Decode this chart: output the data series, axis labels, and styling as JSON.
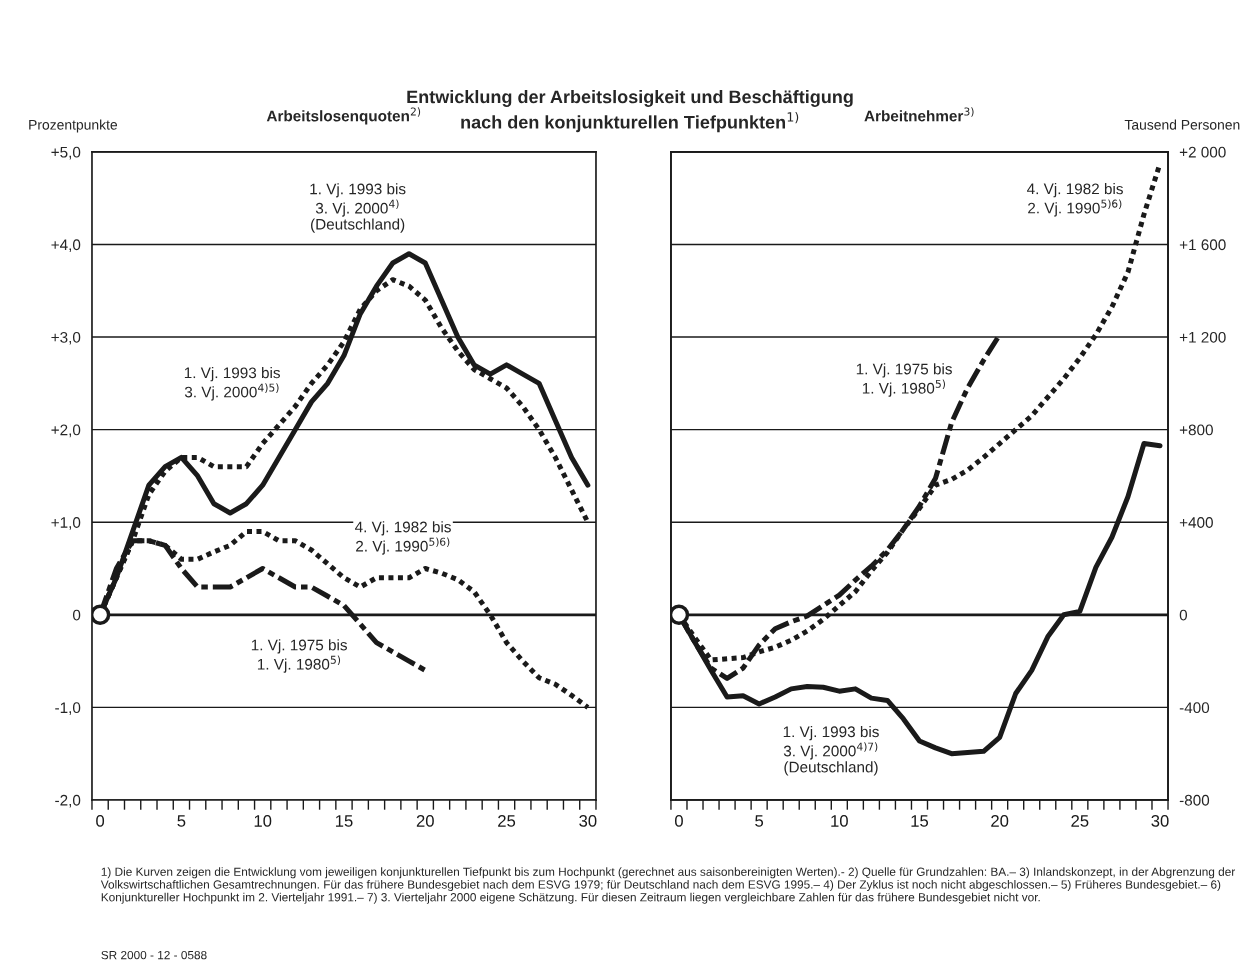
{
  "chart_data": [
    {
      "type": "line",
      "title": "Entwicklung der Arbeitslosigkeit und Beschäftigung\nnach den konjunkturellen Tiefpunkten$^{1)}$",
      "subtitle": "Arbeitslosenquoten$^{2)}$",
      "ylabel": "Prozentpunkte",
      "x": [
        0,
        1,
        2,
        3,
        4,
        5,
        6,
        7,
        8,
        9,
        10,
        11,
        12,
        13,
        14,
        15,
        16,
        17,
        18,
        19,
        20,
        21,
        22,
        23,
        24,
        25,
        26,
        27,
        28,
        29,
        30
      ],
      "xlim": [
        -0.5,
        30.5
      ],
      "xticks": [
        {
          "value": -0.5,
          "label": null
        },
        {
          "value": 0,
          "label": "0"
        },
        {
          "value": 0.5,
          "label": null
        },
        {
          "value": 1.5,
          "label": null
        },
        {
          "value": 2.5,
          "label": null
        },
        {
          "value": 3.5,
          "label": null
        },
        {
          "value": 4.5,
          "label": null
        },
        {
          "value": 5,
          "label": "5"
        },
        {
          "value": 5.5,
          "label": null
        },
        {
          "value": 6.5,
          "label": null
        },
        {
          "value": 7.5,
          "label": null
        },
        {
          "value": 8.5,
          "label": null
        },
        {
          "value": 9.5,
          "label": null
        },
        {
          "value": 10,
          "label": "10"
        },
        {
          "value": 10.5,
          "label": null
        },
        {
          "value": 11.5,
          "label": null
        },
        {
          "value": 12.5,
          "label": null
        },
        {
          "value": 13.5,
          "label": null
        },
        {
          "value": 14.5,
          "label": null
        },
        {
          "value": 15,
          "label": "15"
        },
        {
          "value": 15.5,
          "label": null
        },
        {
          "value": 16.5,
          "label": null
        },
        {
          "value": 17.5,
          "label": null
        },
        {
          "value": 18.5,
          "label": null
        },
        {
          "value": 19.5,
          "label": null
        },
        {
          "value": 20,
          "label": "20"
        },
        {
          "value": 20.5,
          "label": null
        },
        {
          "value": 21.5,
          "label": null
        },
        {
          "value": 22.5,
          "label": null
        },
        {
          "value": 23.5,
          "label": null
        },
        {
          "value": 24.5,
          "label": null
        },
        {
          "value": 25,
          "label": "25"
        },
        {
          "value": 25.5,
          "label": null
        },
        {
          "value": 26.5,
          "label": null
        },
        {
          "value": 27.5,
          "label": null
        },
        {
          "value": 28.5,
          "label": null
        },
        {
          "value": 29.5,
          "label": null
        },
        {
          "value": 30,
          "label": "30"
        },
        {
          "value": 30.5,
          "label": null
        }
      ],
      "ylim": [
        -2,
        5
      ],
      "yticks": [
        {
          "value": -2,
          "label": "-2,0"
        },
        {
          "value": -1,
          "label": "-1,0"
        },
        0,
        {
          "value": 1,
          "label": "+1,0"
        },
        {
          "value": 2,
          "label": "+2,0"
        },
        {
          "value": 3,
          "label": "+3,0"
        },
        {
          "value": 4,
          "label": "+4,0"
        },
        {
          "value": 5,
          "label": "+5,0"
        }
      ],
      "grid": "y",
      "ref_lines": [
        {
          "axis": "y",
          "value": 0,
          "color": "#1a1a1a"
        }
      ],
      "series": [
        {
          "color": "#1a1a1a",
          "line_style": "solid",
          "values": [
            0,
            0.4,
            0.9,
            1.4,
            1.6,
            1.7,
            1.5,
            1.2,
            1.1,
            1.2,
            1.4,
            1.7,
            2.0,
            2.3,
            2.5,
            2.8,
            3.25,
            3.55,
            3.8,
            3.9,
            3.8,
            3.4,
            3.0,
            2.7,
            2.6,
            2.7,
            2.6,
            2.5,
            2.1,
            1.7,
            1.4
          ]
        },
        {
          "color": "#1a1a1a",
          "line_style": "dotted",
          "values": [
            0,
            0.4,
            0.8,
            1.3,
            1.55,
            1.7,
            1.7,
            1.6,
            1.6,
            1.6,
            1.85,
            2.05,
            2.25,
            2.5,
            2.7,
            2.95,
            3.3,
            3.5,
            3.62,
            3.55,
            3.4,
            3.1,
            2.85,
            2.65,
            2.55,
            2.45,
            2.25,
            2.0,
            1.7,
            1.35,
            1.0
          ]
        },
        {
          "color": "#1a1a1a",
          "line_style": "dotted",
          "values": [
            0,
            0.4,
            0.8,
            0.8,
            0.75,
            0.6,
            0.6,
            0.68,
            0.75,
            0.9,
            0.9,
            0.8,
            0.8,
            0.7,
            0.55,
            0.4,
            0.3,
            0.4,
            0.4,
            0.4,
            0.5,
            0.45,
            0.38,
            0.25,
            0.0,
            -0.3,
            -0.5,
            -0.68,
            -0.75,
            -0.87,
            -1.0
          ]
        },
        {
          "color": "#1a1a1a",
          "line_style": "dashed",
          "x": [
            0,
            1,
            2,
            3,
            4,
            5,
            6,
            7,
            8,
            9,
            10,
            11,
            12,
            13,
            14,
            15,
            16,
            17,
            18,
            19,
            20
          ],
          "values": [
            0,
            0.5,
            0.8,
            0.8,
            0.75,
            0.5,
            0.3,
            0.3,
            0.3,
            0.4,
            0.5,
            0.4,
            0.3,
            0.3,
            0.2,
            0.1,
            -0.1,
            -0.3,
            -0.4,
            -0.5,
            -0.6
          ]
        },
        {
          "type": "scatter",
          "marker": "circle",
          "color": "#1a1a1a",
          "x": [
            0
          ],
          "values": [
            0
          ]
        }
      ],
      "annotations": [
        {
          "text": "1. Vj. 1993 bis\n3. Vj. 2000$^{4)}$\n(Deutschland)",
          "x": 19,
          "y": 3.9
        },
        {
          "text": "1. Vj. 1993 bis\n3. Vj. 2000$^{4)5)}$",
          "x": 10,
          "y": 1.85
        },
        {
          "text": "4. Vj. 1982 bis\n2. Vj. 1990$^{5)6)}$",
          "x": 20,
          "y": 0.5
        },
        {
          "text": "1. Vj. 1975 bis\n1. Vj. 1980$^{5)}$",
          "x": 16,
          "y": -0.1
        }
      ]
    },
    {
      "type": "line",
      "subtitle": "Arbeitnehmer$^{3)}$",
      "y2label": "Tausend Personen",
      "x": [
        0,
        1,
        2,
        3,
        4,
        5,
        6,
        7,
        8,
        9,
        10,
        11,
        12,
        13,
        14,
        15,
        16,
        17,
        18,
        19,
        20,
        21,
        22,
        23,
        24,
        25,
        26,
        27,
        28,
        29,
        30
      ],
      "xlim": [
        -0.5,
        30.5
      ],
      "xticks": [
        {
          "value": -0.5,
          "label": null
        },
        {
          "value": 0,
          "label": "0"
        },
        {
          "value": 0.5,
          "label": null
        },
        {
          "value": 1.5,
          "label": null
        },
        {
          "value": 2.5,
          "label": null
        },
        {
          "value": 3.5,
          "label": null
        },
        {
          "value": 4.5,
          "label": null
        },
        {
          "value": 5,
          "label": "5"
        },
        {
          "value": 5.5,
          "label": null
        },
        {
          "value": 6.5,
          "label": null
        },
        {
          "value": 7.5,
          "label": null
        },
        {
          "value": 8.5,
          "label": null
        },
        {
          "value": 9.5,
          "label": null
        },
        {
          "value": 10,
          "label": "10"
        },
        {
          "value": 10.5,
          "label": null
        },
        {
          "value": 11.5,
          "label": null
        },
        {
          "value": 12.5,
          "label": null
        },
        {
          "value": 13.5,
          "label": null
        },
        {
          "value": 14.5,
          "label": null
        },
        {
          "value": 15,
          "label": "15"
        },
        {
          "value": 15.5,
          "label": null
        },
        {
          "value": 16.5,
          "label": null
        },
        {
          "value": 17.5,
          "label": null
        },
        {
          "value": 18.5,
          "label": null
        },
        {
          "value": 19.5,
          "label": null
        },
        {
          "value": 20,
          "label": "20"
        },
        {
          "value": 20.5,
          "label": null
        },
        {
          "value": 21.5,
          "label": null
        },
        {
          "value": 22.5,
          "label": null
        },
        {
          "value": 23.5,
          "label": null
        },
        {
          "value": 24.5,
          "label": null
        },
        {
          "value": 25,
          "label": "25"
        },
        {
          "value": 25.5,
          "label": null
        },
        {
          "value": 26.5,
          "label": null
        },
        {
          "value": 27.5,
          "label": null
        },
        {
          "value": 28.5,
          "label": null
        },
        {
          "value": 29.5,
          "label": null
        },
        {
          "value": 30,
          "label": "30"
        },
        {
          "value": 30.5,
          "label": null
        }
      ],
      "y2lim": [
        -800,
        2000
      ],
      "y2ticks": [
        -800,
        -400,
        0,
        {
          "value": 400,
          "label": "+400"
        },
        {
          "value": 800,
          "label": "+800"
        },
        {
          "value": 1200,
          "label": "+1 200"
        },
        {
          "value": 1600,
          "label": "+1 600"
        },
        {
          "value": 2000,
          "label": "+2 000"
        }
      ],
      "grid": "y",
      "ref_lines": [
        {
          "axis": "y2",
          "value": 0,
          "color": "#1a1a1a"
        }
      ],
      "series": [
        {
          "axis": "y2",
          "color": "#1a1a1a",
          "line_style": "solid",
          "values": [
            0,
            -120,
            -240,
            -355,
            -350,
            -385,
            -355,
            -320,
            -310,
            -313,
            -330,
            -320,
            -360,
            -370,
            -450,
            -545,
            -575,
            -600,
            -595,
            -590,
            -530,
            -340,
            -240,
            -95,
            0,
            15,
            205,
            335,
            510,
            740,
            730
          ]
        },
        {
          "axis": "y2",
          "color": "#1a1a1a",
          "line_style": "dotted",
          "values": [
            0,
            -100,
            -195,
            -190,
            -185,
            -160,
            -140,
            -110,
            -70,
            -20,
            40,
            100,
            190,
            270,
            370,
            460,
            560,
            585,
            625,
            680,
            740,
            800,
            860,
            940,
            1020,
            1110,
            1210,
            1330,
            1480,
            1730,
            1950
          ]
        },
        {
          "axis": "y2",
          "color": "#1a1a1a",
          "line_style": "dashed",
          "x": [
            0,
            1,
            2,
            3,
            4,
            5,
            6,
            7,
            8,
            9,
            10,
            11,
            12,
            13,
            14,
            15,
            16,
            17,
            18,
            19,
            20
          ],
          "values": [
            0,
            -120,
            -230,
            -275,
            -230,
            -130,
            -60,
            -30,
            -5,
            40,
            85,
            150,
            210,
            280,
            370,
            470,
            590,
            830,
            980,
            1100,
            1210
          ]
        },
        {
          "axis": "y2",
          "type": "scatter",
          "marker": "circle",
          "color": "#1a1a1a",
          "x": [
            0
          ],
          "values": [
            0
          ]
        }
      ],
      "annotations": [
        "4. Vj. 1982 bis\n2. Vj. 1990$^{5)6)}$",
        "1. Vj. 1975 bis\n1. Vj. 1980$^{5)}$",
        "1. Vj. 1993 bis\n3. Vj. 2000$^{4)7)}$\n(Deutschland)",
        "1) Die Kurven zeigen die Entwicklung vom jeweiligen konjunkturellen Tiefpunkt bis zum Hochpunkt (gerechnet aus saisonbereinigten Werten).- 2) Quelle für Grundzahlen: BA.– 3) Inlandskonzept, in der Abgrenzung der Volkswirtschaftlichen Gesamtrechnungen. Für das frühere Bundesgebiet nach dem ESVG 1979; für Deutschland nach dem ESVG 1995.– 4) Der Zyklus ist noch nicht abgeschlossen.– 5) Früheres Bundesgebiet.– 6) Konjunktureller Hochpunkt im 2. Vierteljahr 1991.– 7) 3. Vierteljahr 2000 eigene Schätzung. Für diesen Zeitraum liegen vergleichbare Zahlen für das frühere Bundesgebiet nicht vor.",
        "SR 2000 - 12 - 0588"
      ]
    }
  ]
}
